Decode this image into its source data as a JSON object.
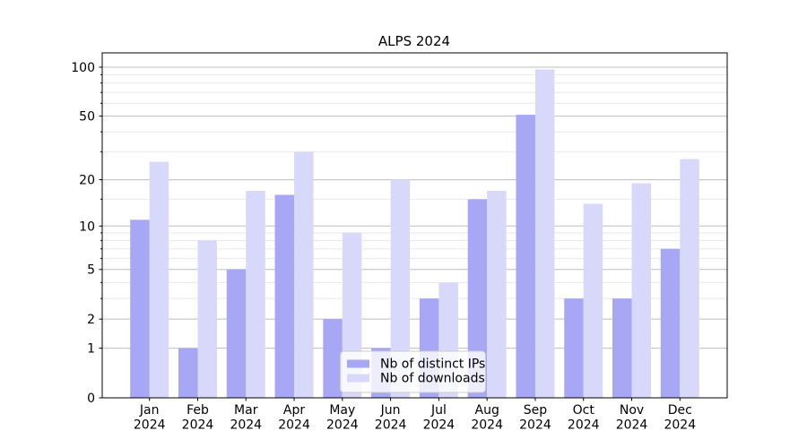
{
  "chart_data": {
    "type": "bar",
    "title": "ALPS 2024",
    "months": [
      "Jan",
      "Feb",
      "Mar",
      "Apr",
      "May",
      "Jun",
      "Jul",
      "Aug",
      "Sep",
      "Oct",
      "Nov",
      "Dec"
    ],
    "year_label": "2024",
    "series": [
      {
        "name": "Nb of distinct IPs",
        "color": "#a7a7f6",
        "values": [
          11,
          1,
          5,
          16,
          2,
          1,
          3,
          15,
          51,
          3,
          3,
          7
        ]
      },
      {
        "name": "Nb of downloads",
        "color": "#d8d8fa",
        "values": [
          26,
          8,
          17,
          30,
          9,
          20,
          4,
          17,
          97,
          14,
          19,
          27
        ]
      }
    ],
    "y_axis": {
      "scale": "log1p",
      "ticks": [
        0,
        1,
        2,
        5,
        10,
        20,
        50,
        100
      ],
      "minor_ticks": [
        3,
        4,
        6,
        7,
        8,
        9,
        15,
        30,
        40,
        60,
        70,
        80,
        90
      ],
      "range": [
        0,
        123
      ]
    },
    "legend_position": "lower center",
    "grid": "both",
    "colors": {
      "major_grid": "#bdbdbd",
      "minor_grid": "#e8e8e8",
      "spine": "#000000",
      "legend_border": "#cccccc",
      "legend_bg_alpha": 0.8
    }
  }
}
